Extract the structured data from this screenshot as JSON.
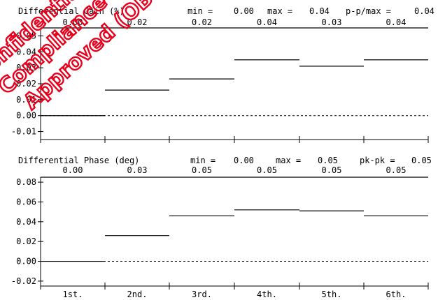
{
  "chart_data": [
    {
      "type": "step",
      "title": "Differential Gain (%)",
      "stats": [
        {
          "label": "min =",
          "value": "0.00"
        },
        {
          "label": "max =",
          "value": "0.04"
        },
        {
          "label": "p-p/max =",
          "value": "0.04"
        }
      ],
      "value_labels": [
        "0.00",
        "0.02",
        "0.02",
        "0.04",
        "0.03",
        "0.04"
      ],
      "values": [
        0.0,
        0.016,
        0.023,
        0.035,
        0.031,
        0.035
      ],
      "y_ticks": [
        "0.05",
        "0.04",
        "0.03",
        "0.02",
        "0.01",
        "0.00",
        "-0.01"
      ],
      "y_tick_values": [
        0.05,
        0.04,
        0.03,
        0.02,
        0.01,
        0.0,
        -0.01
      ],
      "ylim": [
        -0.015,
        0.055
      ],
      "reference_line": 0.0,
      "top_line": 0.055
    },
    {
      "type": "step",
      "title": "Differential Phase (deg)",
      "stats": [
        {
          "label": "min =",
          "value": "0.00"
        },
        {
          "label": "max =",
          "value": "0.05"
        },
        {
          "label": "pk-pk =",
          "value": "0.05"
        }
      ],
      "value_labels": [
        "0.00",
        "0.03",
        "0.05",
        "0.05",
        "0.05",
        "0.05"
      ],
      "values": [
        0.0,
        0.026,
        0.046,
        0.052,
        0.051,
        0.046
      ],
      "y_ticks": [
        "0.08",
        "0.06",
        "0.04",
        "0.02",
        "0.00",
        "-0.02"
      ],
      "y_tick_values": [
        0.08,
        0.06,
        0.04,
        0.02,
        0.0,
        -0.02
      ],
      "ylim": [
        -0.025,
        0.085
      ],
      "reference_line": 0.0,
      "top_line": 0.085
    }
  ],
  "categories": [
    "1st.",
    "2nd.",
    "3rd.",
    "4th.",
    "5th.",
    "6th."
  ],
  "watermark": {
    "lines": [
      "Confidential",
      "Compliance",
      "Approved (OBS)"
    ],
    "color": "#e8001c"
  }
}
